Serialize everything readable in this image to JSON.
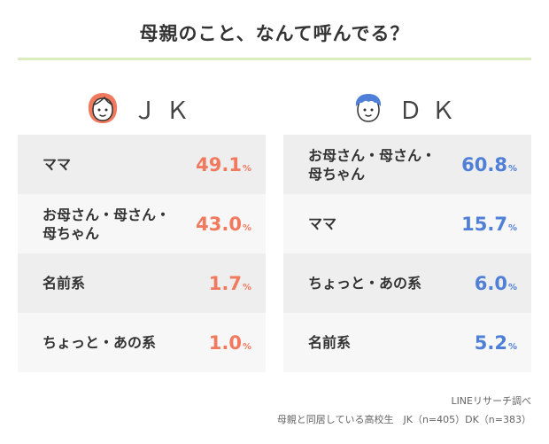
{
  "title": "母親のこと、なんて呼んでる？",
  "colors": {
    "jk": "#f0795e",
    "dk": "#4f7fd6",
    "rule": "#d9ebbf"
  },
  "chart_data": [
    {
      "type": "table",
      "group": "ＪＫ",
      "icon": "girl-face-icon",
      "unit": "%",
      "rows": [
        {
          "label": "ママ",
          "value": 49.1
        },
        {
          "label": "お母さん・母さん・母ちゃん",
          "value": 43.0
        },
        {
          "label": "名前系",
          "value": 1.7
        },
        {
          "label": "ちょっと・あの系",
          "value": 1.0
        }
      ]
    },
    {
      "type": "table",
      "group": "ＤＫ",
      "icon": "boy-face-icon",
      "unit": "%",
      "rows": [
        {
          "label": "お母さん・母さん・母ちゃん",
          "value": 60.8
        },
        {
          "label": "ママ",
          "value": 15.7
        },
        {
          "label": "ちょっと・あの系",
          "value": 6.0
        },
        {
          "label": "名前系",
          "value": 5.2
        }
      ]
    }
  ],
  "footnote": {
    "source": "LINEリサーチ調べ",
    "sample": "母親と同居している高校生　JK（n=405）DK（n=383）"
  }
}
